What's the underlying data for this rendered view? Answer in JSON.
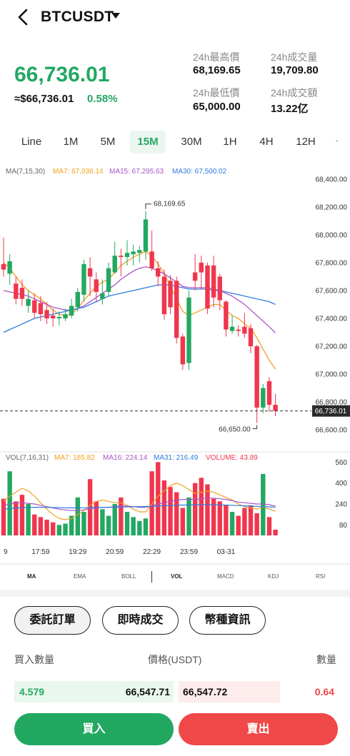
{
  "header": {
    "title": "BTCUSDT"
  },
  "price": {
    "last": "66,736.01",
    "approx": "≈$66,736.01",
    "change_pct": "0.58%"
  },
  "stats": {
    "high_label": "24h最高價",
    "high_value": "68,169.65",
    "volume_label": "24h成交量",
    "volume_value": "19,709.80",
    "low_label": "24h最低價",
    "low_value": "65,000.00",
    "turnover_label": "24h成交額",
    "turnover_value": "13.22亿"
  },
  "timeframes": [
    "Line",
    "1M",
    "5M",
    "15M",
    "30M",
    "1H",
    "4H",
    "12H"
  ],
  "active_timeframe": "15M",
  "chart_data": {
    "type": "candlestick",
    "ma_legend": {
      "title": "MA(7,15,30)",
      "ma7": "MA7: 67,036.14",
      "ma15": "MA15: 67,295.63",
      "ma30": "MA30: 67,500.02"
    },
    "y_ticks": [
      "68,400.00",
      "68,200.00",
      "68,000.00",
      "67,800.00",
      "67,600.00",
      "67,400.00",
      "67,200.00",
      "67,000.00",
      "66,800.00",
      "66,600.00"
    ],
    "ylim": [
      66560,
      68450
    ],
    "current_price_label": "66,736.01",
    "current_price": 66736.01,
    "high_annotation": "68,169.65",
    "high_value": 68169.65,
    "low_annotation": "66,650.00",
    "low_value": 66650.0,
    "candles": [
      [
        67790,
        67750,
        67980,
        67700
      ],
      [
        67720,
        67810,
        67860,
        67640
      ],
      [
        67650,
        67540,
        67700,
        67500
      ],
      [
        67620,
        67540,
        67680,
        67490
      ],
      [
        67490,
        67540,
        67600,
        67440
      ],
      [
        67530,
        67440,
        67580,
        67400
      ],
      [
        67510,
        67430,
        67560,
        67380
      ],
      [
        67460,
        67400,
        67520,
        67360
      ],
      [
        67420,
        67400,
        67470,
        67340
      ],
      [
        67400,
        67410,
        67450,
        67350
      ],
      [
        67400,
        67430,
        67470,
        67380
      ],
      [
        67420,
        67490,
        67540,
        67400
      ],
      [
        67480,
        67590,
        67620,
        67450
      ],
      [
        67570,
        67790,
        67820,
        67520
      ],
      [
        67760,
        67700,
        67840,
        67560
      ],
      [
        67680,
        67590,
        67730,
        67520
      ],
      [
        67540,
        67580,
        67680,
        67500
      ],
      [
        67590,
        67760,
        67800,
        67560
      ],
      [
        67730,
        67850,
        67950,
        67720
      ],
      [
        67850,
        67840,
        67900,
        67700
      ],
      [
        67840,
        67870,
        67960,
        67780
      ],
      [
        67860,
        67880,
        67930,
        67780
      ],
      [
        67870,
        67890,
        67920,
        67800
      ],
      [
        67880,
        68110,
        68169.65,
        67820
      ],
      [
        67880,
        67760,
        68030,
        67740
      ],
      [
        67760,
        67700,
        67810,
        67630
      ],
      [
        67700,
        67430,
        67750,
        67390
      ],
      [
        67670,
        67480,
        67710,
        67430
      ],
      [
        67670,
        67260,
        67700,
        67220
      ],
      [
        67270,
        67070,
        67290,
        67030
      ],
      [
        67080,
        67550,
        67600,
        67030
      ],
      [
        67730,
        67670,
        67860,
        67600
      ],
      [
        67800,
        67730,
        67850,
        67610
      ],
      [
        67780,
        67470,
        67800,
        67430
      ],
      [
        67780,
        67550,
        67850,
        67480
      ],
      [
        67700,
        67530,
        67720,
        67460
      ],
      [
        67520,
        67320,
        67530,
        67270
      ],
      [
        67310,
        67340,
        67420,
        67290
      ],
      [
        67320,
        67310,
        67350,
        67270
      ],
      [
        67340,
        67290,
        67440,
        67260
      ],
      [
        67330,
        67200,
        67360,
        67150
      ],
      [
        67200,
        66760,
        67210,
        66650
      ],
      [
        66760,
        66900,
        66930,
        66720
      ],
      [
        66950,
        66780,
        66980,
        66730
      ],
      [
        66780,
        66736.01,
        66860,
        66700
      ]
    ],
    "ma_series": [
      {
        "name": "MA7",
        "color": "#f0a020",
        "values": [
          67800,
          67760,
          67700,
          67640,
          67600,
          67570,
          67540,
          67500,
          67460,
          67430,
          67420,
          67430,
          67470,
          67530,
          67580,
          67630,
          67660,
          67680,
          67730,
          67780,
          67810,
          67840,
          67860,
          67880,
          67850,
          67790,
          67720,
          67630,
          67540,
          67450,
          67420,
          67440,
          67460,
          67480,
          67500,
          67500,
          67460,
          67420,
          67400,
          67360,
          67330,
          67260,
          67180,
          67100,
          67036
        ]
      },
      {
        "name": "MA15",
        "color": "#a855c8",
        "values": [
          67600,
          67590,
          67580,
          67570,
          67560,
          67540,
          67520,
          67500,
          67480,
          67470,
          67460,
          67460,
          67470,
          67490,
          67520,
          67550,
          67580,
          67610,
          67640,
          67680,
          67710,
          67740,
          67760,
          67770,
          67760,
          67740,
          67720,
          67690,
          67660,
          67630,
          67620,
          67620,
          67620,
          67620,
          67610,
          67600,
          67580,
          67560,
          67530,
          67500,
          67460,
          67420,
          67380,
          67340,
          67296
        ]
      },
      {
        "name": "MA30",
        "color": "#2f7be0",
        "values": [
          67300,
          67320,
          67340,
          67360,
          67380,
          67400,
          67410,
          67420,
          67430,
          67440,
          67450,
          67460,
          67470,
          67480,
          67500,
          67520,
          67540,
          67560,
          67570,
          67580,
          67590,
          67600,
          67610,
          67620,
          67630,
          67640,
          67640,
          67640,
          67630,
          67620,
          67610,
          67610,
          67610,
          67610,
          67600,
          67600,
          67590,
          67580,
          67570,
          67560,
          67550,
          67540,
          67530,
          67520,
          67500
        ]
      }
    ],
    "vol_legend": {
      "title": "VOL(7,16,31)",
      "ma7": "MA7: 185.82",
      "ma16": "MA16: 224.14",
      "ma31": "MA31: 216.49",
      "volume": "VOLUME: 43.89"
    },
    "vol_ticks": [
      "560",
      "400",
      "240",
      "80"
    ],
    "vol_ylim": [
      0,
      600
    ],
    "volumes": [
      280,
      490,
      260,
      310,
      240,
      160,
      140,
      120,
      100,
      80,
      90,
      150,
      290,
      180,
      430,
      260,
      200,
      150,
      240,
      290,
      180,
      140,
      110,
      130,
      490,
      560,
      420,
      370,
      330,
      210,
      290,
      400,
      440,
      390,
      280,
      260,
      230,
      180,
      150,
      210,
      230,
      170,
      470,
      140,
      43.89
    ],
    "vol_ma_series": [
      {
        "name": "MA7",
        "color": "#f0a020",
        "values": [
          260,
          300,
          330,
          360,
          340,
          300,
          250,
          200,
          160,
          130,
          120,
          130,
          160,
          190,
          230,
          260,
          270,
          260,
          250,
          250,
          230,
          200,
          180,
          180,
          240,
          300,
          340,
          380,
          400,
          380,
          350,
          320,
          330,
          340,
          330,
          310,
          290,
          270,
          240,
          220,
          210,
          200,
          220,
          200,
          186
        ]
      },
      {
        "name": "MA16",
        "color": "#a855c8",
        "values": [
          230,
          240,
          250,
          250,
          245,
          240,
          230,
          220,
          210,
          200,
          195,
          190,
          190,
          195,
          205,
          210,
          215,
          215,
          220,
          225,
          225,
          220,
          215,
          215,
          225,
          240,
          250,
          260,
          270,
          275,
          275,
          275,
          280,
          285,
          285,
          280,
          275,
          265,
          255,
          250,
          245,
          240,
          240,
          235,
          224
        ]
      },
      {
        "name": "MA31",
        "color": "#2f7be0",
        "values": [
          200,
          205,
          210,
          212,
          214,
          215,
          215,
          214,
          213,
          212,
          211,
          210,
          210,
          211,
          212,
          213,
          214,
          215,
          216,
          217,
          218,
          219,
          220,
          221,
          223,
          225,
          227,
          229,
          231,
          232,
          233,
          234,
          235,
          235,
          234,
          233,
          232,
          230,
          228,
          226,
          224,
          222,
          220,
          218,
          216
        ]
      }
    ],
    "x_ticks": [
      {
        "label": "9",
        "index": 0
      },
      {
        "label": "17:59",
        "index": 6
      },
      {
        "label": "19:29",
        "index": 12
      },
      {
        "label": "20:59",
        "index": 18
      },
      {
        "label": "22:29",
        "index": 24
      },
      {
        "label": "23:59",
        "index": 30
      },
      {
        "label": "03-31",
        "index": 36
      }
    ]
  },
  "indicators": [
    "MA",
    "EMA",
    "BOLL",
    "VOL",
    "MACD",
    "KDJ",
    "RSI"
  ],
  "tabs": [
    "委託訂單",
    "即時成交",
    "幣種資訊"
  ],
  "orderbook": {
    "col_buy": "買入數量",
    "col_price": "價格(USDT)",
    "col_qty": "數量",
    "buy_qty": "4.579",
    "buy_price": "66,547.71",
    "sell_price": "66,547.72",
    "sell_qty": "0.64"
  },
  "actions": {
    "buy": "買入",
    "sell": "賣出"
  },
  "colors": {
    "up": "#23a862",
    "down": "#f0364e",
    "ma7": "#f0a020",
    "ma15": "#a855c8",
    "ma30": "#2f7be0"
  }
}
